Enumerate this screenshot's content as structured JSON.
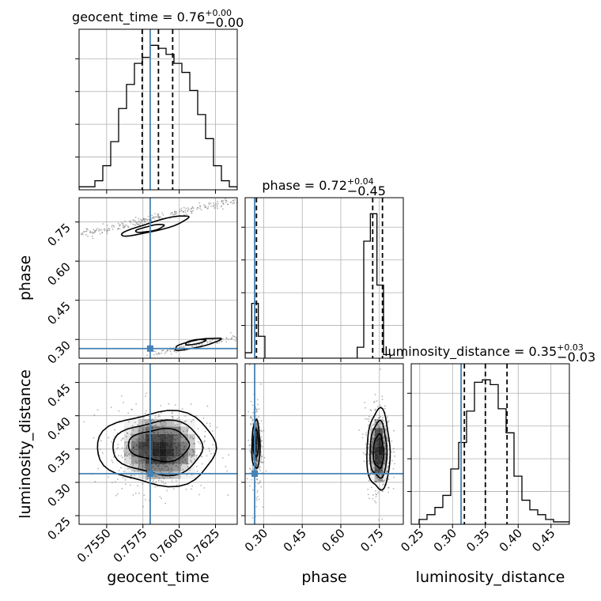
{
  "colors": {
    "truth": "#4682b4",
    "ink": "#000000",
    "grid": "#b0b0b0",
    "density": "#000000"
  },
  "chart_data": {
    "type": "corner",
    "parameters": [
      "geocent_time",
      "phase",
      "luminosity_distance"
    ],
    "axis_labels": {
      "geocent_time": "geocent_time",
      "phase": "phase",
      "luminosity_distance": "luminosity_distance"
    },
    "titles": [
      {
        "parameter": "geocent_time",
        "base": "geocent_time = 0.76",
        "sup": "+0.00",
        "sub": "−0.00"
      },
      {
        "parameter": "phase",
        "base": "phase = 0.72",
        "sup": "+0.04",
        "sub": "−0.45"
      },
      {
        "parameter": "luminosity_distance",
        "base": "luminosity_distance = 0.35",
        "sup": "+0.03",
        "sub": "−0.03"
      }
    ],
    "ranges": {
      "geocent_time": [
        0.7531,
        0.764
      ],
      "phase": [
        0.228,
        0.843
      ],
      "luminosity_distance": [
        0.237,
        0.478
      ]
    },
    "ticks": {
      "geocent_time": [
        0.755,
        0.7575,
        0.76,
        0.7625
      ],
      "phase": [
        0.3,
        0.45,
        0.6,
        0.75
      ],
      "luminosity_distance": [
        0.25,
        0.3,
        0.35,
        0.4,
        0.45
      ]
    },
    "tick_labels": {
      "geocent_time": [
        "0.7550",
        "0.7575",
        "0.7600",
        "0.7625"
      ],
      "phase": [
        "0.30",
        "0.45",
        "0.60",
        "0.75"
      ],
      "luminosity_distance": [
        "0.25",
        "0.30",
        "0.35",
        "0.40",
        "0.45"
      ]
    },
    "truths": {
      "geocent_time": 0.758,
      "phase": 0.265,
      "luminosity_distance": 0.313
    },
    "quantiles": {
      "geocent_time": [
        0.75745,
        0.75857,
        0.75955
      ],
      "phase": [
        0.272,
        0.724,
        0.762
      ],
      "luminosity_distance": [
        0.318,
        0.35,
        0.383
      ]
    },
    "histograms": {
      "geocent_time": [
        1,
        1,
        3,
        8,
        16,
        27,
        35,
        42,
        44,
        48,
        47,
        45,
        42,
        39,
        33,
        25,
        17,
        8,
        3,
        1
      ],
      "phase": [
        3,
        30,
        12,
        0,
        0,
        0,
        0,
        0,
        0,
        0,
        0,
        0,
        0,
        0,
        0,
        0,
        0,
        6,
        64,
        79,
        40,
        2,
        0,
        0
      ],
      "luminosity_distance": [
        0,
        2,
        4,
        7,
        12,
        23,
        34,
        47,
        59,
        60,
        58,
        48,
        38,
        20,
        10,
        6,
        4,
        2,
        1,
        1
      ]
    },
    "scatter_clusters": {
      "geocent_time-phase": [
        {
          "x": [
            0.7531,
            0.764
          ],
          "y": [
            0.7,
            0.835
          ],
          "spread": [
            0.0003,
            0.008
          ],
          "n": 260
        },
        {
          "x": [
            0.7583,
            0.764
          ],
          "y": [
            0.245,
            0.312
          ],
          "spread": [
            0.0003,
            0.006
          ],
          "n": 110
        }
      ],
      "geocent_time-luminosity_distance": [
        {
          "cx": 0.75855,
          "cy": 0.35,
          "sx": 0.0017,
          "sy": 0.032,
          "n": 600
        }
      ],
      "phase-luminosity_distance": [
        {
          "cx": 0.27,
          "cy": 0.352,
          "sx": 0.012,
          "sy": 0.035,
          "n": 260
        },
        {
          "cx": 0.745,
          "cy": 0.348,
          "sx": 0.025,
          "sy": 0.034,
          "n": 420
        }
      ]
    },
    "contours": {
      "geocent_time-phase": [
        {
          "cx": 0.7584,
          "cy": 0.735,
          "rx": 0.0024,
          "ry": 0.018,
          "slope": 15
        },
        {
          "cx": 0.758,
          "cy": 0.725,
          "rx": 0.001,
          "ry": 0.01,
          "slope": 12
        },
        {
          "cx": 0.7612,
          "cy": 0.283,
          "rx": 0.0016,
          "ry": 0.014,
          "slope": 12
        },
        {
          "cx": 0.7611,
          "cy": 0.29,
          "rx": 0.0007,
          "ry": 0.008,
          "slope": 10
        }
      ],
      "geocent_time-luminosity_distance": [
        {
          "cx": 0.75855,
          "cy": 0.351,
          "rx": 0.0041,
          "ry": 0.055
        },
        {
          "cx": 0.7586,
          "cy": 0.352,
          "rx": 0.0031,
          "ry": 0.04
        },
        {
          "cx": 0.75865,
          "cy": 0.356,
          "rx": 0.0021,
          "ry": 0.024
        }
      ],
      "phase-luminosity_distance": [
        {
          "cx": 0.27,
          "cy": 0.356,
          "rx": 0.016,
          "ry": 0.036
        },
        {
          "cx": 0.27,
          "cy": 0.358,
          "rx": 0.01,
          "ry": 0.02
        },
        {
          "cx": 0.747,
          "cy": 0.348,
          "rx": 0.045,
          "ry": 0.06
        },
        {
          "cx": 0.747,
          "cy": 0.348,
          "rx": 0.033,
          "ry": 0.042
        },
        {
          "cx": 0.747,
          "cy": 0.346,
          "rx": 0.02,
          "ry": 0.025
        }
      ]
    },
    "density_cells": {
      "geocent_time-luminosity_distance": {
        "x": [
          0.7562,
          0.7611
        ],
        "y": [
          0.305,
          0.395
        ],
        "nx": 10,
        "ny": 8
      },
      "phase-luminosity_distance": {
        "x": [
          0.255,
          0.285
        ],
        "y": [
          0.32,
          0.395
        ],
        "nx": 3,
        "ny": 6
      },
      "phase-luminosity_distance-2": {
        "x": [
          0.715,
          0.78
        ],
        "y": [
          0.3,
          0.395
        ],
        "nx": 4,
        "ny": 7
      }
    },
    "grid": true
  }
}
